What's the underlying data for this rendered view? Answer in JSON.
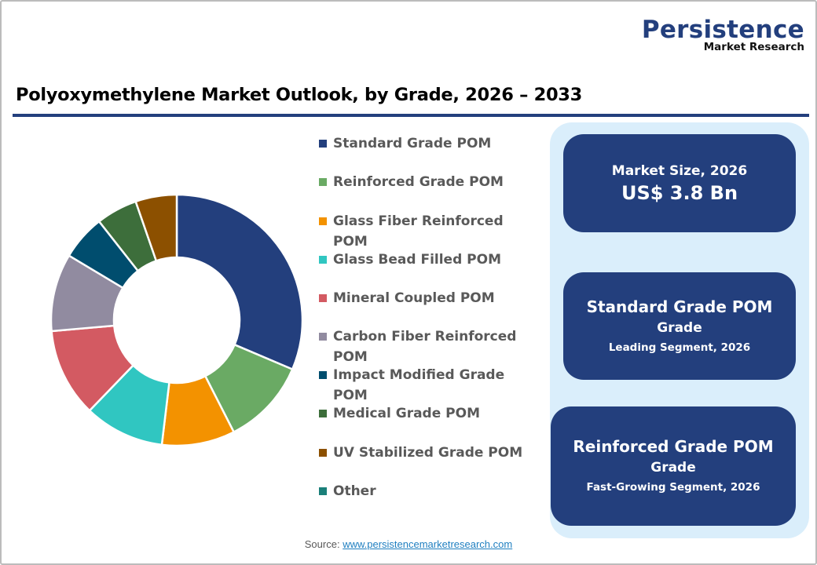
{
  "logo": {
    "brand": "Persistence",
    "sub": "Market Research"
  },
  "title": "Polyoxymethylene Market Outlook, by Grade, 2026 – 2033",
  "legend": [
    {
      "label": "Standard Grade POM",
      "color": "#233f7d"
    },
    {
      "label": "Reinforced Grade POM",
      "color": "#6aaa64"
    },
    {
      "label": "Glass Fiber Reinforced POM",
      "color": "#f39200"
    },
    {
      "label": "Glass Bead Filled POM",
      "color": "#30c6c1"
    },
    {
      "label": "Mineral Coupled POM",
      "color": "#d35a62"
    },
    {
      "label": "Carbon Fiber Reinforced POM",
      "color": "#918ba0"
    },
    {
      "label": "Impact Modified Grade POM",
      "color": "#004d6e"
    },
    {
      "label": "Medical Grade POM",
      "color": "#3d6e3b"
    },
    {
      "label": "UV Stabilized Grade POM",
      "color": "#8c5000"
    },
    {
      "label": "Other",
      "color": "#1a7f79"
    }
  ],
  "cards": {
    "market_size": {
      "label": "Market Size, 2026",
      "value": "US$ 3.8 Bn"
    },
    "leading": {
      "head": "Standard Grade POM",
      "sub": "Grade",
      "caption": "Leading Segment, 2026"
    },
    "fastest": {
      "head": "Reinforced Grade POM",
      "sub": "Grade",
      "caption": "Fast-Growing Segment, 2026"
    }
  },
  "source": {
    "prefix": "Source: ",
    "link": "www.persistencemarketresearch.com"
  },
  "chart_data": {
    "type": "pie",
    "subtype": "donut",
    "title": "Polyoxymethylene Market Outlook, by Grade, 2026 – 2033",
    "categories": [
      "Standard Grade POM",
      "Reinforced Grade POM",
      "Glass Fiber Reinforced POM",
      "Glass Bead Filled POM",
      "Mineral Coupled POM",
      "Carbon Fiber Reinforced POM",
      "Impact Modified Grade POM",
      "Medical Grade POM",
      "UV Stabilized Grade POM",
      "Other"
    ],
    "values": [
      31.4,
      11.1,
      9.4,
      10.3,
      11.4,
      10.0,
      5.8,
      5.3,
      5.3,
      0
    ],
    "unit": "% share (estimated from slice angles)",
    "colors": [
      "#233f7d",
      "#6aaa64",
      "#f39200",
      "#30c6c1",
      "#d35a62",
      "#918ba0",
      "#004d6e",
      "#3d6e3b",
      "#8c5000",
      "#1a7f79"
    ],
    "legend_position": "right",
    "data_labels": false
  }
}
